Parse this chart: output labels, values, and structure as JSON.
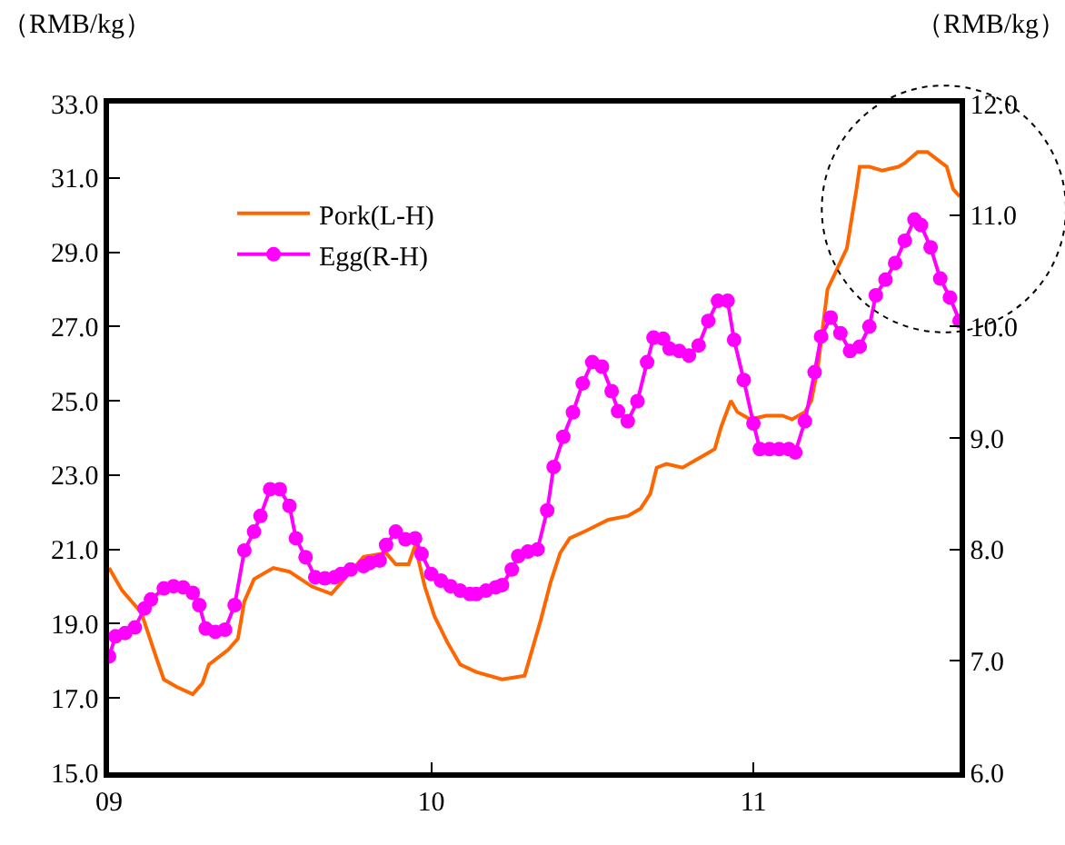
{
  "chart_data": {
    "type": "line",
    "ylabel": "（RMB/kg）",
    "y2label": "（RMB/kg）",
    "xlim": [
      2009,
      2011.64
    ],
    "xticks": [
      {
        "value": 2009,
        "label": "09"
      },
      {
        "value": 2010,
        "label": "10"
      },
      {
        "value": 2011,
        "label": "11"
      }
    ],
    "ylim": [
      15,
      33
    ],
    "yticks": [
      {
        "value": 15,
        "label": "15.0"
      },
      {
        "value": 17,
        "label": "17.0"
      },
      {
        "value": 19,
        "label": "19.0"
      },
      {
        "value": 21,
        "label": "21.0"
      },
      {
        "value": 23,
        "label": "23.0"
      },
      {
        "value": 25,
        "label": "25.0"
      },
      {
        "value": 27,
        "label": "27.0"
      },
      {
        "value": 29,
        "label": "29.0"
      },
      {
        "value": 31,
        "label": "31.0"
      },
      {
        "value": 33,
        "label": "33.0"
      }
    ],
    "y2lim": [
      6,
      12
    ],
    "y2ticks": [
      {
        "value": 6,
        "label": "6.0"
      },
      {
        "value": 7,
        "label": "7.0"
      },
      {
        "value": 8,
        "label": "8.0"
      },
      {
        "value": 9,
        "label": "9.0"
      },
      {
        "value": 10,
        "label": "10.0"
      },
      {
        "value": 11,
        "label": "11.0"
      },
      {
        "value": 12,
        "label": "12.0"
      }
    ],
    "legend": "top left",
    "series": [
      {
        "name": "Pork(L-H)",
        "color": "#ff6600",
        "marker": "none",
        "x": [
          2009.0,
          2009.04,
          2009.1,
          2009.15,
          2009.17,
          2009.21,
          2009.26,
          2009.29,
          2009.31,
          2009.37,
          2009.4,
          2009.42,
          2009.45,
          2009.51,
          2009.56,
          2009.63,
          2009.69,
          2009.72,
          2009.79,
          2009.86,
          2009.89,
          2009.93,
          2009.95,
          2009.98,
          2010.01,
          2010.05,
          2010.09,
          2010.14,
          2010.22,
          2010.29,
          2010.31,
          2010.34,
          2010.37,
          2010.4,
          2010.43,
          2010.48,
          2010.55,
          2010.61,
          2010.65,
          2010.68,
          2010.7,
          2010.73,
          2010.78,
          2010.84,
          2010.88,
          2010.9,
          2010.93,
          2010.95,
          2010.99,
          2011.04,
          2011.09,
          2011.12,
          2011.16,
          2011.18,
          2011.2,
          2011.23,
          2011.29,
          2011.32,
          2011.33,
          2011.36,
          2011.4,
          2011.45,
          2011.47,
          2011.51,
          2011.54,
          2011.57,
          2011.6,
          2011.62,
          2011.64
        ],
        "values": [
          20.5,
          19.9,
          19.3,
          18.0,
          17.5,
          17.3,
          17.1,
          17.4,
          17.9,
          18.3,
          18.6,
          19.6,
          20.2,
          20.5,
          20.4,
          20.0,
          19.8,
          20.1,
          20.8,
          20.9,
          20.6,
          20.6,
          21.1,
          20.0,
          19.2,
          18.5,
          17.9,
          17.7,
          17.5,
          17.6,
          18.2,
          19.1,
          20.1,
          20.9,
          21.3,
          21.5,
          21.8,
          21.9,
          22.1,
          22.5,
          23.2,
          23.3,
          23.2,
          23.5,
          23.7,
          24.3,
          25.0,
          24.7,
          24.5,
          24.6,
          24.6,
          24.5,
          24.7,
          25.0,
          25.9,
          28.0,
          29.1,
          30.7,
          31.3,
          31.3,
          31.2,
          31.3,
          31.4,
          31.7,
          31.7,
          31.5,
          31.3,
          30.7,
          30.5
        ]
      },
      {
        "name": "Egg(R-H)",
        "color": "#ff00ff",
        "marker": "circle",
        "axis": "y2",
        "x": [
          2009.0,
          2009.02,
          2009.05,
          2009.08,
          2009.11,
          2009.13,
          2009.17,
          2009.2,
          2009.23,
          2009.26,
          2009.28,
          2009.3,
          2009.33,
          2009.36,
          2009.39,
          2009.42,
          2009.45,
          2009.47,
          2009.5,
          2009.53,
          2009.56,
          2009.58,
          2009.61,
          2009.64,
          2009.67,
          2009.7,
          2009.72,
          2009.75,
          2009.79,
          2009.81,
          2009.84,
          2009.86,
          2009.89,
          2009.92,
          2009.95,
          2009.97,
          2010.0,
          2010.03,
          2010.06,
          2010.09,
          2010.12,
          2010.14,
          2010.17,
          2010.2,
          2010.22,
          2010.25,
          2010.27,
          2010.3,
          2010.33,
          2010.36,
          2010.38,
          2010.41,
          2010.44,
          2010.47,
          2010.5,
          2010.53,
          2010.56,
          2010.58,
          2010.61,
          2010.64,
          2010.67,
          2010.69,
          2010.72,
          2010.74,
          2010.77,
          2010.8,
          2010.83,
          2010.86,
          2010.89,
          2010.92,
          2010.94,
          2010.97,
          2011.0,
          2011.02,
          2011.05,
          2011.08,
          2011.11,
          2011.13,
          2011.16,
          2011.19,
          2011.21,
          2011.24,
          2011.27,
          2011.3,
          2011.33,
          2011.36,
          2011.38,
          2011.41,
          2011.44,
          2011.47,
          2011.5,
          2011.52,
          2011.55,
          2011.58,
          2011.61,
          2011.64
        ],
        "values": [
          7.04,
          7.22,
          7.25,
          7.3,
          7.47,
          7.55,
          7.65,
          7.67,
          7.66,
          7.61,
          7.5,
          7.29,
          7.26,
          7.28,
          7.5,
          7.99,
          8.16,
          8.3,
          8.54,
          8.54,
          8.39,
          8.1,
          7.93,
          7.75,
          7.74,
          7.75,
          7.78,
          7.82,
          7.85,
          7.88,
          7.9,
          8.04,
          8.16,
          8.09,
          8.1,
          7.96,
          7.78,
          7.72,
          7.67,
          7.63,
          7.6,
          7.6,
          7.63,
          7.66,
          7.68,
          7.82,
          7.94,
          7.98,
          8.0,
          8.35,
          8.74,
          9.01,
          9.23,
          9.49,
          9.68,
          9.64,
          9.42,
          9.24,
          9.15,
          9.33,
          9.68,
          9.9,
          9.89,
          9.8,
          9.78,
          9.74,
          9.83,
          10.05,
          10.23,
          10.23,
          9.88,
          9.52,
          9.13,
          8.9,
          8.9,
          8.9,
          8.9,
          8.87,
          9.15,
          9.59,
          9.91,
          10.08,
          9.94,
          9.78,
          9.82,
          10.0,
          10.28,
          10.42,
          10.57,
          10.77,
          10.96,
          10.91,
          10.71,
          10.43,
          10.26,
          10.05
        ]
      }
    ]
  }
}
